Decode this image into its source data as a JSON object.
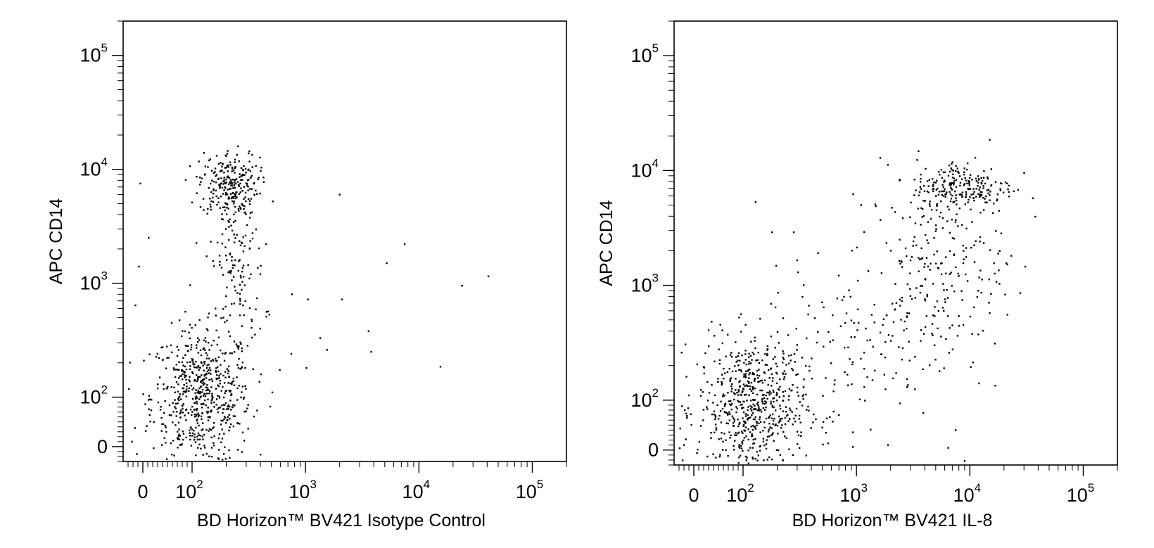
{
  "chart_data": [
    {
      "type": "scatter",
      "title": "",
      "xlabel": "BD Horizon™ BV421 Isotype Control",
      "ylabel": "APC CD14",
      "x_scale": "biexponential",
      "y_scale": "biexponential",
      "xlim": [
        -40,
        200000
      ],
      "ylim": [
        -30,
        200000
      ],
      "x_ticks": [
        {
          "label": "0",
          "value": 0
        },
        {
          "label": "10",
          "exp": "2",
          "value": 100
        },
        {
          "label": "10",
          "exp": "3",
          "value": 1000
        },
        {
          "label": "10",
          "exp": "4",
          "value": 10000
        },
        {
          "label": "10",
          "exp": "5",
          "value": 100000
        }
      ],
      "y_ticks": [
        {
          "label": "0",
          "value": 0
        },
        {
          "label": "10",
          "exp": "2",
          "value": 100
        },
        {
          "label": "10",
          "exp": "3",
          "value": 1000
        },
        {
          "label": "10",
          "exp": "4",
          "value": 10000
        },
        {
          "label": "10",
          "exp": "5",
          "value": 100000
        }
      ],
      "populations": [
        {
          "x": 120,
          "y": 100,
          "count": 620,
          "spread_x": 0.22,
          "spread_y": 0.3
        },
        {
          "x": 210,
          "y": 7500,
          "count": 230,
          "spread_x": 0.13,
          "spread_y": 0.14
        },
        {
          "x": 250,
          "y": 1500,
          "count": 160,
          "spread_x": 0.12,
          "spread_y": 0.45
        }
      ],
      "points": [
        [
          2000,
          6000
        ],
        [
          7500,
          2200
        ],
        [
          5200,
          1500
        ],
        [
          24000,
          950
        ],
        [
          41000,
          1150
        ],
        [
          760,
          800
        ],
        [
          1050,
          720
        ],
        [
          2100,
          720
        ],
        [
          3600,
          380
        ],
        [
          3800,
          250
        ],
        [
          15500,
          185
        ],
        [
          1550,
          260
        ],
        [
          1350,
          330
        ],
        [
          750,
          240
        ],
        [
          1020,
          180
        ],
        [
          450,
          2200
        ],
        [
          480,
          530
        ],
        [
          400,
          1200
        ],
        [
          -8,
          1400
        ],
        [
          -15,
          640
        ],
        [
          -5,
          7500
        ],
        [
          -22,
          10
        ],
        [
          -12,
          -15
        ],
        [
          510,
          110
        ],
        [
          12,
          2500
        ]
      ]
    },
    {
      "type": "scatter",
      "title": "",
      "xlabel": "BD Horizon™ BV421 IL-8",
      "ylabel": "APC CD14",
      "x_scale": "biexponential",
      "y_scale": "biexponential",
      "xlim": [
        -40,
        200000
      ],
      "ylim": [
        -30,
        200000
      ],
      "x_ticks": [
        {
          "label": "0",
          "value": 0
        },
        {
          "label": "10",
          "exp": "2",
          "value": 100
        },
        {
          "label": "10",
          "exp": "3",
          "value": 1000
        },
        {
          "label": "10",
          "exp": "4",
          "value": 10000
        },
        {
          "label": "10",
          "exp": "5",
          "value": 100000
        }
      ],
      "y_ticks": [
        {
          "label": "0",
          "value": 0
        },
        {
          "label": "10",
          "exp": "2",
          "value": 100
        },
        {
          "label": "10",
          "exp": "3",
          "value": 1000
        },
        {
          "label": "10",
          "exp": "4",
          "value": 10000
        },
        {
          "label": "10",
          "exp": "5",
          "value": 100000
        }
      ],
      "populations": [
        {
          "x": 120,
          "y": 85,
          "count": 640,
          "spread_x": 0.24,
          "spread_y": 0.3
        },
        {
          "x": 9000,
          "y": 7200,
          "count": 220,
          "spread_x": 0.22,
          "spread_y": 0.12
        },
        {
          "x": 5000,
          "y": 1500,
          "count": 230,
          "spread_x": 0.3,
          "spread_y": 0.4
        },
        {
          "x": 800,
          "y": 300,
          "count": 120,
          "spread_x": 0.4,
          "spread_y": 0.35
        }
      ],
      "points": [
        [
          180,
          2900
        ],
        [
          280,
          2900
        ],
        [
          300,
          1650
        ],
        [
          1100,
          5000
        ],
        [
          7500,
          40
        ],
        [
          9000,
          -22
        ],
        [
          1900,
          10
        ],
        [
          2800,
          130
        ],
        [
          12000,
          140
        ],
        [
          18000,
          1350
        ],
        [
          -15,
          160
        ],
        [
          -10,
          110
        ],
        [
          -20,
          10
        ],
        [
          500,
          45
        ],
        [
          700,
          70
        ]
      ]
    }
  ]
}
